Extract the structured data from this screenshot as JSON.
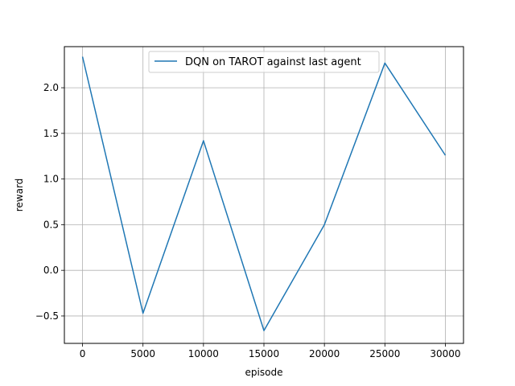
{
  "chart_data": {
    "type": "line",
    "title": "",
    "xlabel": "episode",
    "ylabel": "reward",
    "xlim": [
      -1500,
      31500
    ],
    "ylim": [
      -0.8,
      2.45
    ],
    "grid": true,
    "legend_position": "top-center",
    "x_ticks": [
      0,
      5000,
      10000,
      15000,
      20000,
      25000,
      30000
    ],
    "x_tick_labels": [
      "0",
      "5000",
      "10000",
      "15000",
      "20000",
      "25000",
      "30000"
    ],
    "y_ticks": [
      -0.5,
      0.0,
      0.5,
      1.0,
      1.5,
      2.0
    ],
    "y_tick_labels": [
      "−0.5",
      "0.0",
      "0.5",
      "1.0",
      "1.5",
      "2.0"
    ],
    "series": [
      {
        "name": "DQN on TAROT against last agent",
        "color": "#1f77b4",
        "x": [
          0,
          5000,
          10000,
          15000,
          20000,
          25000,
          30000
        ],
        "y": [
          2.34,
          -0.47,
          1.42,
          -0.66,
          0.5,
          2.27,
          1.26
        ]
      }
    ]
  }
}
